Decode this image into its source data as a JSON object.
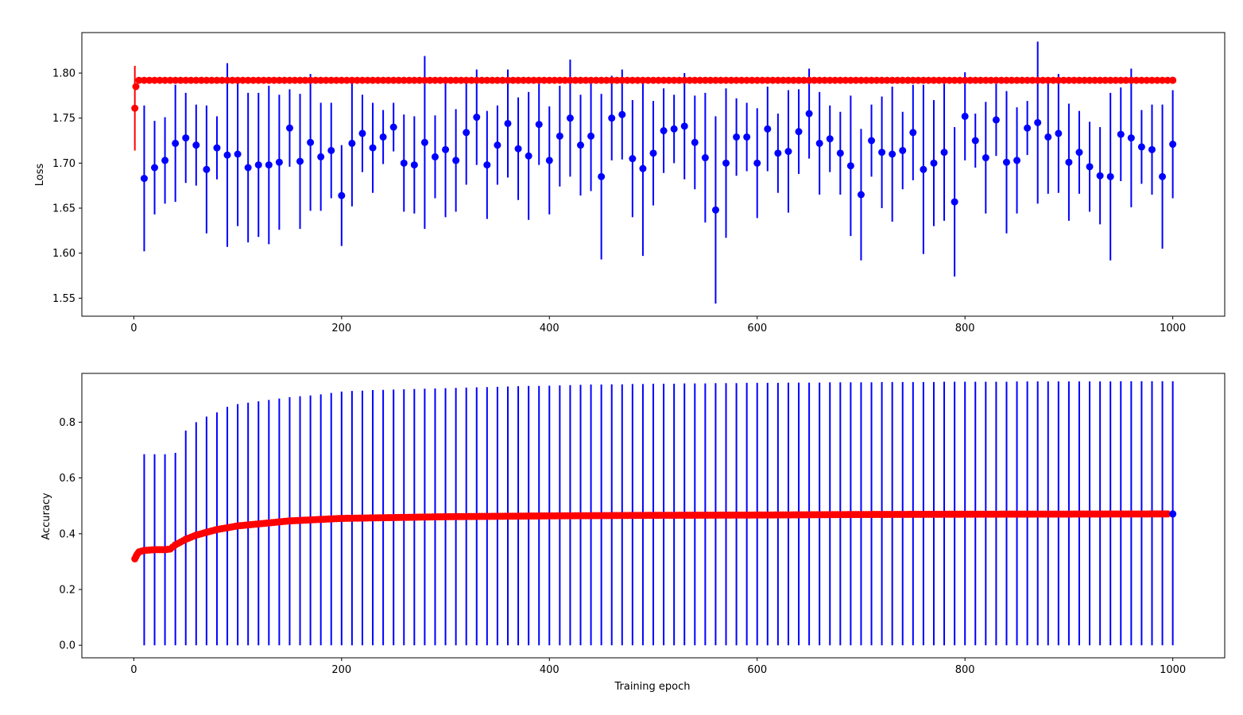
{
  "chart_data": [
    {
      "type": "scatter",
      "panel": "top",
      "xlabel": "",
      "ylabel": "Loss",
      "xlim": [
        -50,
        1050
      ],
      "ylim": [
        1.53,
        1.845
      ],
      "xticks": [
        0,
        200,
        400,
        600,
        800,
        1000
      ],
      "yticks": [
        1.55,
        1.6,
        1.65,
        1.7,
        1.75,
        1.8
      ],
      "xtick_labels": [
        "0",
        "200",
        "400",
        "600",
        "800",
        "1000"
      ],
      "ytick_labels": [
        "1.55",
        "1.60",
        "1.65",
        "1.70",
        "1.75",
        "1.80"
      ],
      "colors": {
        "blue": "#0000ff",
        "red": "#ff0000"
      },
      "blue_series": {
        "x": [
          10,
          20,
          30,
          40,
          50,
          60,
          70,
          80,
          90,
          100,
          110,
          120,
          130,
          140,
          150,
          160,
          170,
          180,
          190,
          200,
          210,
          220,
          230,
          240,
          250,
          260,
          270,
          280,
          290,
          300,
          310,
          320,
          330,
          340,
          350,
          360,
          370,
          380,
          390,
          400,
          410,
          420,
          430,
          440,
          450,
          460,
          470,
          480,
          490,
          500,
          510,
          520,
          530,
          540,
          550,
          560,
          570,
          580,
          590,
          600,
          610,
          620,
          630,
          640,
          650,
          660,
          670,
          680,
          690,
          700,
          710,
          720,
          730,
          740,
          750,
          760,
          770,
          780,
          790,
          800,
          810,
          820,
          830,
          840,
          850,
          860,
          870,
          880,
          890,
          900,
          910,
          920,
          930,
          940,
          950,
          960,
          970,
          980,
          990,
          1000
        ],
        "y": [
          1.683,
          1.695,
          1.703,
          1.722,
          1.728,
          1.72,
          1.693,
          1.717,
          1.709,
          1.71,
          1.695,
          1.698,
          1.698,
          1.701,
          1.739,
          1.702,
          1.723,
          1.707,
          1.714,
          1.664,
          1.722,
          1.733,
          1.717,
          1.729,
          1.74,
          1.7,
          1.698,
          1.723,
          1.707,
          1.715,
          1.703,
          1.734,
          1.751,
          1.698,
          1.72,
          1.744,
          1.716,
          1.708,
          1.743,
          1.703,
          1.73,
          1.75,
          1.72,
          1.73,
          1.685,
          1.75,
          1.754,
          1.705,
          1.694,
          1.711,
          1.736,
          1.738,
          1.741,
          1.723,
          1.706,
          1.648,
          1.7,
          1.729,
          1.729,
          1.7,
          1.738,
          1.711,
          1.713,
          1.735,
          1.755,
          1.722,
          1.727,
          1.711,
          1.697,
          1.665,
          1.725,
          1.712,
          1.71,
          1.714,
          1.734,
          1.693,
          1.7,
          1.712,
          1.657,
          1.752,
          1.725,
          1.706,
          1.748,
          1.701,
          1.703,
          1.739,
          1.745,
          1.729,
          1.733,
          1.701,
          1.712,
          1.696,
          1.686,
          1.685,
          1.732,
          1.728,
          1.718,
          1.715,
          1.685,
          1.721
        ],
        "err": [
          0.081,
          0.052,
          0.048,
          0.065,
          0.05,
          0.045,
          0.071,
          0.035,
          0.102,
          0.08,
          0.083,
          0.08,
          0.088,
          0.075,
          0.043,
          0.075,
          0.076,
          0.06,
          0.053,
          0.056,
          0.07,
          0.043,
          0.05,
          0.03,
          0.027,
          0.054,
          0.054,
          0.096,
          0.046,
          0.075,
          0.057,
          0.058,
          0.053,
          0.06,
          0.044,
          0.06,
          0.057,
          0.071,
          0.045,
          0.06,
          0.056,
          0.065,
          0.056,
          0.061,
          0.092,
          0.047,
          0.05,
          0.065,
          0.097,
          0.058,
          0.047,
          0.038,
          0.059,
          0.052,
          0.072,
          0.104,
          0.083,
          0.043,
          0.038,
          0.061,
          0.047,
          0.044,
          0.068,
          0.047,
          0.05,
          0.057,
          0.037,
          0.046,
          0.078,
          0.073,
          0.04,
          0.062,
          0.075,
          0.043,
          0.053,
          0.094,
          0.07,
          0.076,
          0.083,
          0.049,
          0.03,
          0.062,
          0.04,
          0.079,
          0.059,
          0.03,
          0.09,
          0.063,
          0.066,
          0.065,
          0.046,
          0.05,
          0.054,
          0.093,
          0.052,
          0.077,
          0.041,
          0.05,
          0.08,
          0.06
        ]
      },
      "red_series": {
        "x_start": 1,
        "x_end": 1000,
        "step": 5,
        "first": {
          "x": 1,
          "y": 1.761,
          "err": 0.047
        },
        "second": {
          "x": 2,
          "y": 1.785
        },
        "plateau": 1.792
      }
    },
    {
      "type": "scatter",
      "panel": "bottom",
      "xlabel": "Training epoch",
      "ylabel": "Accuracy",
      "xlim": [
        -50,
        1050
      ],
      "ylim": [
        -0.045,
        0.975
      ],
      "xticks": [
        0,
        200,
        400,
        600,
        800,
        1000
      ],
      "yticks": [
        0.0,
        0.2,
        0.4,
        0.6,
        0.8
      ],
      "xtick_labels": [
        "0",
        "200",
        "400",
        "600",
        "800",
        "1000"
      ],
      "ytick_labels": [
        "0.0",
        "0.2",
        "0.4",
        "0.6",
        "0.8"
      ],
      "colors": {
        "blue": "#0000ff",
        "red": "#ff0000"
      },
      "blue_errbars": {
        "x": [
          10,
          20,
          30,
          40,
          50,
          60,
          70,
          80,
          90,
          100,
          110,
          120,
          130,
          140,
          150,
          160,
          170,
          180,
          190,
          200,
          210,
          220,
          230,
          240,
          250,
          260,
          270,
          280,
          290,
          300,
          310,
          320,
          330,
          340,
          350,
          360,
          370,
          380,
          390,
          400,
          410,
          420,
          430,
          440,
          450,
          460,
          470,
          480,
          490,
          500,
          510,
          520,
          530,
          540,
          550,
          560,
          570,
          580,
          590,
          600,
          610,
          620,
          630,
          640,
          650,
          660,
          670,
          680,
          690,
          700,
          710,
          720,
          730,
          740,
          750,
          760,
          770,
          780,
          790,
          800,
          810,
          820,
          830,
          840,
          850,
          860,
          870,
          880,
          890,
          900,
          910,
          920,
          930,
          940,
          950,
          960,
          970,
          980,
          990,
          1000
        ],
        "ylow": 0.0,
        "yhigh": [
          0.685,
          0.685,
          0.685,
          0.69,
          0.77,
          0.8,
          0.82,
          0.835,
          0.855,
          0.865,
          0.87,
          0.875,
          0.88,
          0.885,
          0.89,
          0.893,
          0.896,
          0.9,
          0.905,
          0.91,
          0.912,
          0.913,
          0.915,
          0.916,
          0.917,
          0.918,
          0.919,
          0.92,
          0.921,
          0.922,
          0.923,
          0.924,
          0.925,
          0.926,
          0.927,
          0.928,
          0.929,
          0.93,
          0.93,
          0.931,
          0.932,
          0.933,
          0.934,
          0.935,
          0.935,
          0.936,
          0.936,
          0.937,
          0.937,
          0.938,
          0.938,
          0.938,
          0.939,
          0.939,
          0.939,
          0.94,
          0.94,
          0.94,
          0.941,
          0.941,
          0.941,
          0.941,
          0.942,
          0.942,
          0.942,
          0.942,
          0.943,
          0.943,
          0.943,
          0.943,
          0.943,
          0.944,
          0.944,
          0.944,
          0.944,
          0.944,
          0.944,
          0.945,
          0.945,
          0.945,
          0.945,
          0.945,
          0.945,
          0.945,
          0.946,
          0.946,
          0.946,
          0.946,
          0.946,
          0.946,
          0.946,
          0.946,
          0.946,
          0.946,
          0.947,
          0.947,
          0.947,
          0.947,
          0.947,
          0.947
        ]
      },
      "curve_points": {
        "x": [
          1,
          3,
          5,
          10,
          20,
          30,
          35,
          40,
          50,
          60,
          80,
          100,
          150,
          200,
          300,
          400,
          500,
          600,
          700,
          800,
          1000
        ],
        "y": [
          0.31,
          0.325,
          0.335,
          0.34,
          0.343,
          0.343,
          0.345,
          0.36,
          0.38,
          0.395,
          0.415,
          0.428,
          0.446,
          0.455,
          0.461,
          0.464,
          0.466,
          0.467,
          0.469,
          0.47,
          0.471
        ]
      },
      "red_series": {
        "x_start": 1,
        "x_end": 995,
        "step": 5
      },
      "final_blue_point": {
        "x": 1000,
        "y": 0.471
      }
    }
  ]
}
